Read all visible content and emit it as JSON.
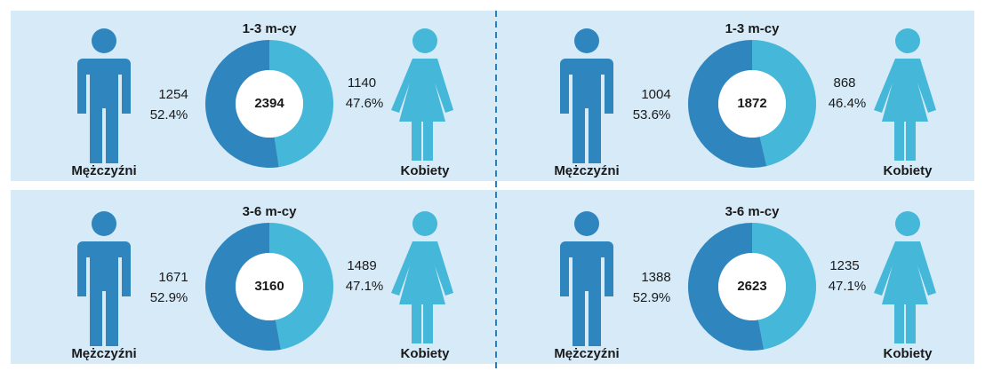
{
  "chart_data": [
    {
      "type": "donut",
      "title": "1-3 m-cy",
      "categories": [
        "Mężczyźni",
        "Kobiety"
      ],
      "values": [
        1254,
        1140
      ],
      "percents": [
        52.4,
        47.6
      ],
      "percent_labels": [
        "52.4%",
        "47.6%"
      ],
      "total": 2394,
      "colors": [
        "#2f86bf",
        "#45b7d8"
      ]
    },
    {
      "type": "donut",
      "title": "1-3 m-cy",
      "categories": [
        "Mężczyźni",
        "Kobiety"
      ],
      "values": [
        1004,
        868
      ],
      "percents": [
        53.6,
        46.4
      ],
      "percent_labels": [
        "53.6%",
        "46.4%"
      ],
      "total": 1872,
      "colors": [
        "#2f86bf",
        "#45b7d8"
      ]
    },
    {
      "type": "donut",
      "title": "3-6 m-cy",
      "categories": [
        "Mężczyźni",
        "Kobiety"
      ],
      "values": [
        1671,
        1489
      ],
      "percents": [
        52.9,
        47.1
      ],
      "percent_labels": [
        "52.9%",
        "47.1%"
      ],
      "total": 3160,
      "colors": [
        "#2f86bf",
        "#45b7d8"
      ]
    },
    {
      "type": "donut",
      "title": "3-6 m-cy",
      "categories": [
        "Mężczyźni",
        "Kobiety"
      ],
      "values": [
        1388,
        1235
      ],
      "percents": [
        52.9,
        47.1
      ],
      "percent_labels": [
        "52.9%",
        "47.1%"
      ],
      "total": 2623,
      "colors": [
        "#2f86bf",
        "#45b7d8"
      ]
    }
  ]
}
